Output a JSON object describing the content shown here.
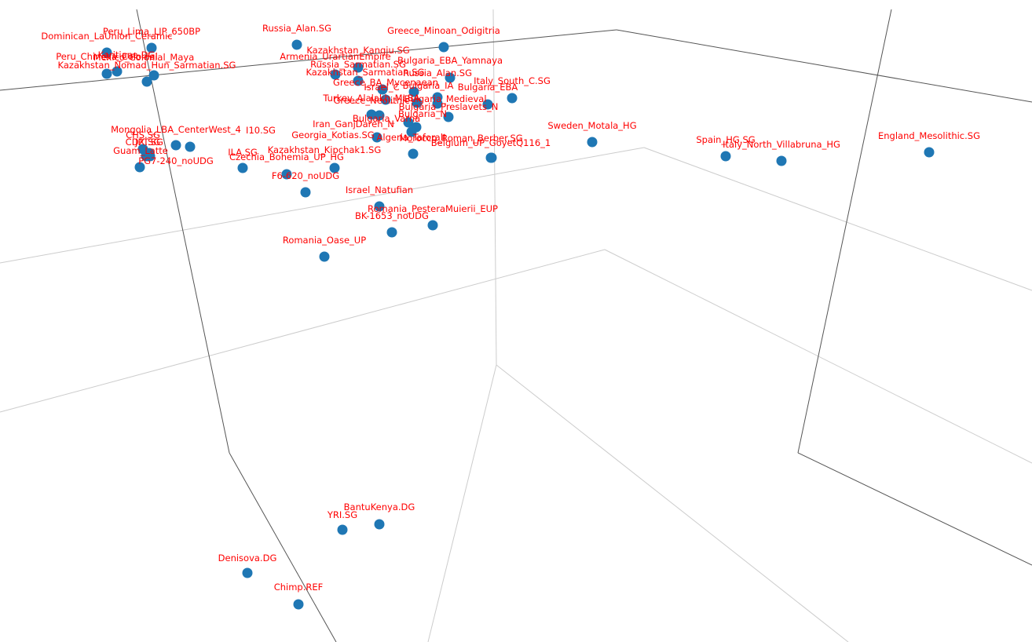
{
  "colors": {
    "marker": "#1f77b4",
    "label": "#ff0000",
    "axis_line": "#555555",
    "grid_line": "#cccccc",
    "background": "#ffffff"
  },
  "chart_data": {
    "type": "scatter",
    "dimensions": 3,
    "title": "",
    "xlabel": "",
    "ylabel": "",
    "zlabel": "",
    "grid": true,
    "legend": "none",
    "points": [
      {
        "label": "Dominican_LaUnion_Ceramic"
      },
      {
        "label": "Peru_Lima_LIP_650BP"
      },
      {
        "label": "Peru_Chincha_Colonial"
      },
      {
        "label": "Karitiana.DG"
      },
      {
        "label": "Mexico_Colonial_Maya"
      },
      {
        "label": "Kazakhstan_Nomad_Hun_Sarmatian.SG"
      },
      {
        "label": "Russia_Alan.SG"
      },
      {
        "label": "Greece_Minoan_Odigitria"
      },
      {
        "label": "Kazakhstan_Kangju.SG"
      },
      {
        "label": "Armenia_UrartianEmpire"
      },
      {
        "label": "Bulgaria_EBA_Yamnaya"
      },
      {
        "label": "Russia_Sarmatian.SG"
      },
      {
        "label": "Kazakhstan_Sarmatian.SG"
      },
      {
        "label": "Russia_Alan.SG"
      },
      {
        "label": "Greece_BA_Mycenaean"
      },
      {
        "label": "Italy_South_C.SG"
      },
      {
        "label": "Israel_C"
      },
      {
        "label": "Bulgaria_EBA"
      },
      {
        "label": "Bulgaria_IA"
      },
      {
        "label": "Turkey_Alalakh_MLBA"
      },
      {
        "label": "Greece_Neolithic"
      },
      {
        "label": "Bulgaria_Medieval"
      },
      {
        "label": "Bulgaria_Preslavets_N"
      },
      {
        "label": "Bulgaria_Varna"
      },
      {
        "label": "Bulgaria_N"
      },
      {
        "label": "Iran_GanjDareh_N"
      },
      {
        "label": "Mongolia_LBA_CenterWest_4"
      },
      {
        "label": "I10.SG"
      },
      {
        "label": "CHS.SG"
      },
      {
        "label": "JPT.SG"
      },
      {
        "label": "CDX.SG"
      },
      {
        "label": "Guam_Latte"
      },
      {
        "label": "PG7-240_noUDG"
      },
      {
        "label": "Georgia_Kotias.SG"
      },
      {
        "label": "Algeria_Taforalt"
      },
      {
        "label": "Morocco_Roman_Berber.SG"
      },
      {
        "label": "Belgium_UP_GoyetQ116_1"
      },
      {
        "label": "Sweden_Motala_HG"
      },
      {
        "label": "Spain_HG.SG"
      },
      {
        "label": "Italy_North_Villabruna_HG"
      },
      {
        "label": "England_Mesolithic.SG"
      },
      {
        "label": "ILA.SG"
      },
      {
        "label": "Kazakhstan_Kipchak1.SG"
      },
      {
        "label": "Czechia_Bohemia_UP_HG"
      },
      {
        "label": "F6-620_noUDG"
      },
      {
        "label": "Israel_Natufian"
      },
      {
        "label": "Romania_PesteraMuierii_EUP"
      },
      {
        "label": "BK-1653_noUDG"
      },
      {
        "label": "Romania_Oase_UP"
      },
      {
        "label": "BantuKenya.DG"
      },
      {
        "label": "YRI.SG"
      },
      {
        "label": "Denisova.DG"
      },
      {
        "label": "Chimp.REF"
      }
    ]
  }
}
